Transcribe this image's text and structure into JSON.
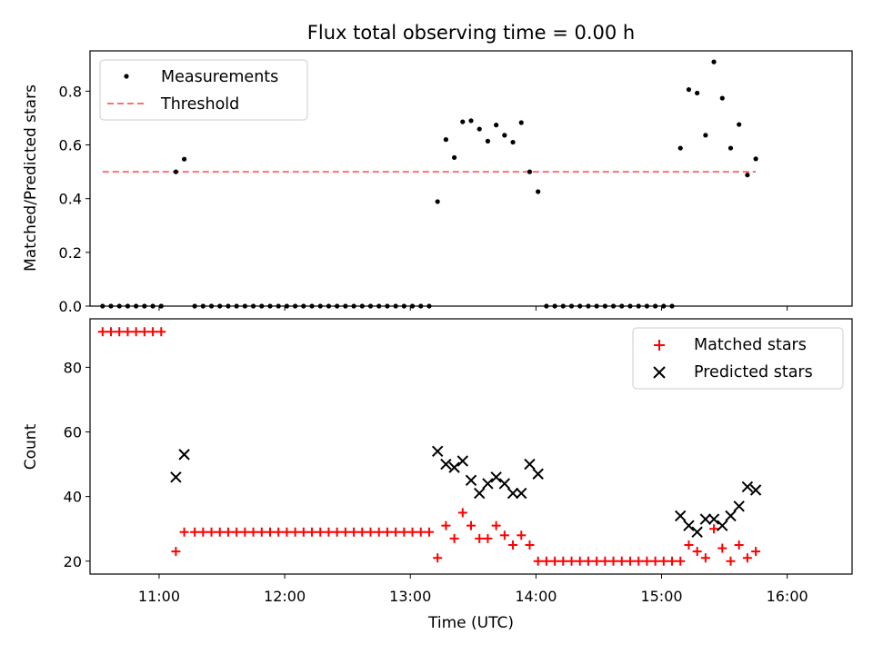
{
  "chart_data": [
    {
      "type": "scatter",
      "title": "Flux total observing time = 0.00 h",
      "xlabel": "",
      "ylabel": "Matched/Predicted stars",
      "xlim": [
        "10:27",
        "16:31"
      ],
      "ylim": [
        0,
        0.95
      ],
      "yticks": [
        0.0,
        0.2,
        0.4,
        0.6,
        0.8
      ],
      "yticklabels": [
        "0.0",
        "0.2",
        "0.4",
        "0.6",
        "0.8"
      ],
      "legend_position": "top-left",
      "series": [
        {
          "name": "Measurements",
          "style": "points",
          "color": "#000000",
          "points": [
            [
              "10:33",
              0
            ],
            [
              "10:37",
              0
            ],
            [
              "10:41",
              0
            ],
            [
              "10:45",
              0
            ],
            [
              "10:49",
              0
            ],
            [
              "10:53",
              0
            ],
            [
              "10:57",
              0
            ],
            [
              "11:01",
              0
            ],
            [
              "11:08",
              0.5
            ],
            [
              "11:12",
              0.547
            ],
            [
              "11:17",
              0
            ],
            [
              "11:21",
              0
            ],
            [
              "11:25",
              0
            ],
            [
              "11:29",
              0
            ],
            [
              "11:33",
              0
            ],
            [
              "11:37",
              0
            ],
            [
              "11:41",
              0
            ],
            [
              "11:45",
              0
            ],
            [
              "11:49",
              0
            ],
            [
              "11:53",
              0
            ],
            [
              "11:57",
              0
            ],
            [
              "12:01",
              0
            ],
            [
              "12:05",
              0
            ],
            [
              "12:09",
              0
            ],
            [
              "12:13",
              0
            ],
            [
              "12:17",
              0
            ],
            [
              "12:21",
              0
            ],
            [
              "12:25",
              0
            ],
            [
              "12:29",
              0
            ],
            [
              "12:33",
              0
            ],
            [
              "12:37",
              0
            ],
            [
              "12:41",
              0
            ],
            [
              "12:45",
              0
            ],
            [
              "12:49",
              0
            ],
            [
              "12:53",
              0
            ],
            [
              "12:57",
              0
            ],
            [
              "13:01",
              0
            ],
            [
              "13:05",
              0
            ],
            [
              "13:09",
              0
            ],
            [
              "13:13",
              0.389
            ],
            [
              "13:17",
              0.62
            ],
            [
              "13:21",
              0.553
            ],
            [
              "13:25",
              0.686
            ],
            [
              "13:29",
              0.69
            ],
            [
              "13:33",
              0.659
            ],
            [
              "13:37",
              0.614
            ],
            [
              "13:41",
              0.674
            ],
            [
              "13:45",
              0.636
            ],
            [
              "13:49",
              0.61
            ],
            [
              "13:53",
              0.683
            ],
            [
              "13:57",
              0.5
            ],
            [
              "14:01",
              0.426
            ],
            [
              "14:05",
              0
            ],
            [
              "14:09",
              0
            ],
            [
              "14:13",
              0
            ],
            [
              "14:17",
              0
            ],
            [
              "14:21",
              0
            ],
            [
              "14:25",
              0
            ],
            [
              "14:29",
              0
            ],
            [
              "14:33",
              0
            ],
            [
              "14:37",
              0
            ],
            [
              "14:41",
              0
            ],
            [
              "14:45",
              0
            ],
            [
              "14:49",
              0
            ],
            [
              "14:53",
              0
            ],
            [
              "14:57",
              0
            ],
            [
              "15:01",
              0
            ],
            [
              "15:05",
              0
            ],
            [
              "15:09",
              0.588
            ],
            [
              "15:13",
              0.806
            ],
            [
              "15:17",
              0.793
            ],
            [
              "15:21",
              0.636
            ],
            [
              "15:25",
              0.909
            ],
            [
              "15:29",
              0.774
            ],
            [
              "15:33",
              0.588
            ],
            [
              "15:37",
              0.676
            ],
            [
              "15:41",
              0.488
            ],
            [
              "15:45",
              0.548
            ]
          ]
        },
        {
          "name": "Threshold",
          "style": "dashed",
          "color": "#ff7070",
          "points": [
            [
              "10:33",
              0.5
            ],
            [
              "15:45",
              0.5
            ]
          ]
        }
      ]
    },
    {
      "type": "scatter",
      "title": "",
      "xlabel": "Time (UTC)",
      "ylabel": "Count",
      "xlim": [
        "10:27",
        "16:31"
      ],
      "ylim": [
        16,
        95
      ],
      "xticks": [
        "11:00",
        "12:00",
        "13:00",
        "14:00",
        "15:00",
        "16:00"
      ],
      "yticks": [
        20,
        40,
        60,
        80
      ],
      "yticklabels": [
        "20",
        "40",
        "60",
        "80"
      ],
      "legend_position": "top-right",
      "series": [
        {
          "name": "Matched stars",
          "marker": "plus",
          "color": "#ff0000",
          "points": [
            [
              "10:33",
              91
            ],
            [
              "10:37",
              91
            ],
            [
              "10:41",
              91
            ],
            [
              "10:45",
              91
            ],
            [
              "10:49",
              91
            ],
            [
              "10:53",
              91
            ],
            [
              "10:57",
              91
            ],
            [
              "11:01",
              91
            ],
            [
              "11:08",
              23
            ],
            [
              "11:12",
              29
            ],
            [
              "11:17",
              29
            ],
            [
              "11:21",
              29
            ],
            [
              "11:25",
              29
            ],
            [
              "11:29",
              29
            ],
            [
              "11:33",
              29
            ],
            [
              "11:37",
              29
            ],
            [
              "11:41",
              29
            ],
            [
              "11:45",
              29
            ],
            [
              "11:49",
              29
            ],
            [
              "11:53",
              29
            ],
            [
              "11:57",
              29
            ],
            [
              "12:01",
              29
            ],
            [
              "12:05",
              29
            ],
            [
              "12:09",
              29
            ],
            [
              "12:13",
              29
            ],
            [
              "12:17",
              29
            ],
            [
              "12:21",
              29
            ],
            [
              "12:25",
              29
            ],
            [
              "12:29",
              29
            ],
            [
              "12:33",
              29
            ],
            [
              "12:37",
              29
            ],
            [
              "12:41",
              29
            ],
            [
              "12:45",
              29
            ],
            [
              "12:49",
              29
            ],
            [
              "12:53",
              29
            ],
            [
              "12:57",
              29
            ],
            [
              "13:01",
              29
            ],
            [
              "13:05",
              29
            ],
            [
              "13:09",
              29
            ],
            [
              "13:13",
              21
            ],
            [
              "13:17",
              31
            ],
            [
              "13:21",
              27
            ],
            [
              "13:25",
              35
            ],
            [
              "13:29",
              31
            ],
            [
              "13:33",
              27
            ],
            [
              "13:37",
              27
            ],
            [
              "13:41",
              31
            ],
            [
              "13:45",
              28
            ],
            [
              "13:49",
              25
            ],
            [
              "13:53",
              28
            ],
            [
              "13:57",
              25
            ],
            [
              "14:01",
              20
            ],
            [
              "14:05",
              20
            ],
            [
              "14:09",
              20
            ],
            [
              "14:13",
              20
            ],
            [
              "14:17",
              20
            ],
            [
              "14:21",
              20
            ],
            [
              "14:25",
              20
            ],
            [
              "14:29",
              20
            ],
            [
              "14:33",
              20
            ],
            [
              "14:37",
              20
            ],
            [
              "14:41",
              20
            ],
            [
              "14:45",
              20
            ],
            [
              "14:49",
              20
            ],
            [
              "14:53",
              20
            ],
            [
              "14:57",
              20
            ],
            [
              "15:01",
              20
            ],
            [
              "15:05",
              20
            ],
            [
              "15:09",
              20
            ],
            [
              "15:13",
              25
            ],
            [
              "15:17",
              23
            ],
            [
              "15:21",
              21
            ],
            [
              "15:25",
              30
            ],
            [
              "15:29",
              24
            ],
            [
              "15:33",
              20
            ],
            [
              "15:37",
              25
            ],
            [
              "15:41",
              21
            ],
            [
              "15:45",
              23
            ]
          ]
        },
        {
          "name": "Predicted stars",
          "marker": "x",
          "color": "#000000",
          "points": [
            [
              "11:08",
              46
            ],
            [
              "11:12",
              53
            ],
            [
              "13:13",
              54
            ],
            [
              "13:17",
              50
            ],
            [
              "13:21",
              49
            ],
            [
              "13:25",
              51
            ],
            [
              "13:29",
              45
            ],
            [
              "13:33",
              41
            ],
            [
              "13:37",
              44
            ],
            [
              "13:41",
              46
            ],
            [
              "13:45",
              44
            ],
            [
              "13:49",
              41
            ],
            [
              "13:53",
              41
            ],
            [
              "13:57",
              50
            ],
            [
              "14:01",
              47
            ],
            [
              "15:09",
              34
            ],
            [
              "15:13",
              31
            ],
            [
              "15:17",
              29
            ],
            [
              "15:21",
              33
            ],
            [
              "15:25",
              33
            ],
            [
              "15:29",
              31
            ],
            [
              "15:33",
              34
            ],
            [
              "15:37",
              37
            ],
            [
              "15:41",
              43
            ],
            [
              "15:45",
              42
            ]
          ]
        }
      ]
    }
  ]
}
